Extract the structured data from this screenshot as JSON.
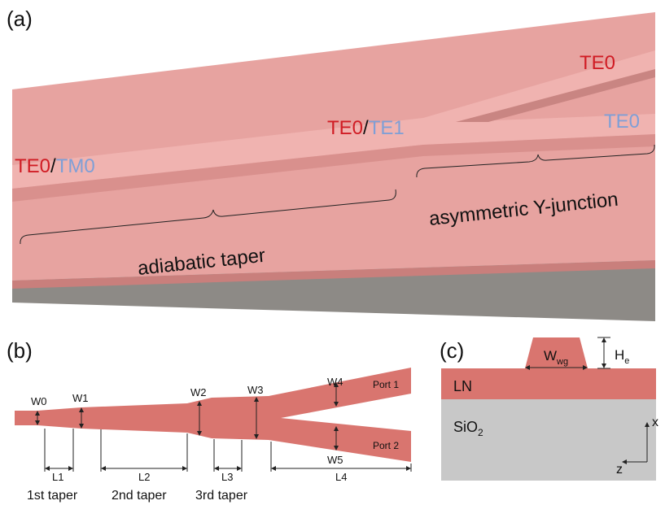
{
  "panel_a": {
    "label": "(a)",
    "input_modes": [
      "TE0",
      "/",
      "TM0"
    ],
    "middle_modes": [
      "TE0",
      "/",
      "TE1"
    ],
    "output_top": "TE0",
    "output_bottom": "TE0",
    "taper_label": "adiabatic taper",
    "junction_label": "asymmetric Y-junction"
  },
  "panel_b": {
    "label": "(b)",
    "widths": [
      "W0",
      "W1",
      "W2",
      "W3",
      "W4",
      "W5"
    ],
    "lengths": [
      "L1",
      "L2",
      "L3",
      "L4"
    ],
    "ports": [
      "Port 1",
      "Port 2"
    ],
    "sections": [
      "1st taper",
      "2nd taper",
      "3rd taper"
    ]
  },
  "panel_c": {
    "label": "(c)",
    "width_symbol": "W",
    "width_subscript": "wg",
    "height_symbol": "H",
    "height_subscript": "e",
    "layer_top": "LN",
    "substrate_symbol": "SiO",
    "substrate_subscript": "2",
    "axis_x": "x",
    "axis_z": "z"
  }
}
